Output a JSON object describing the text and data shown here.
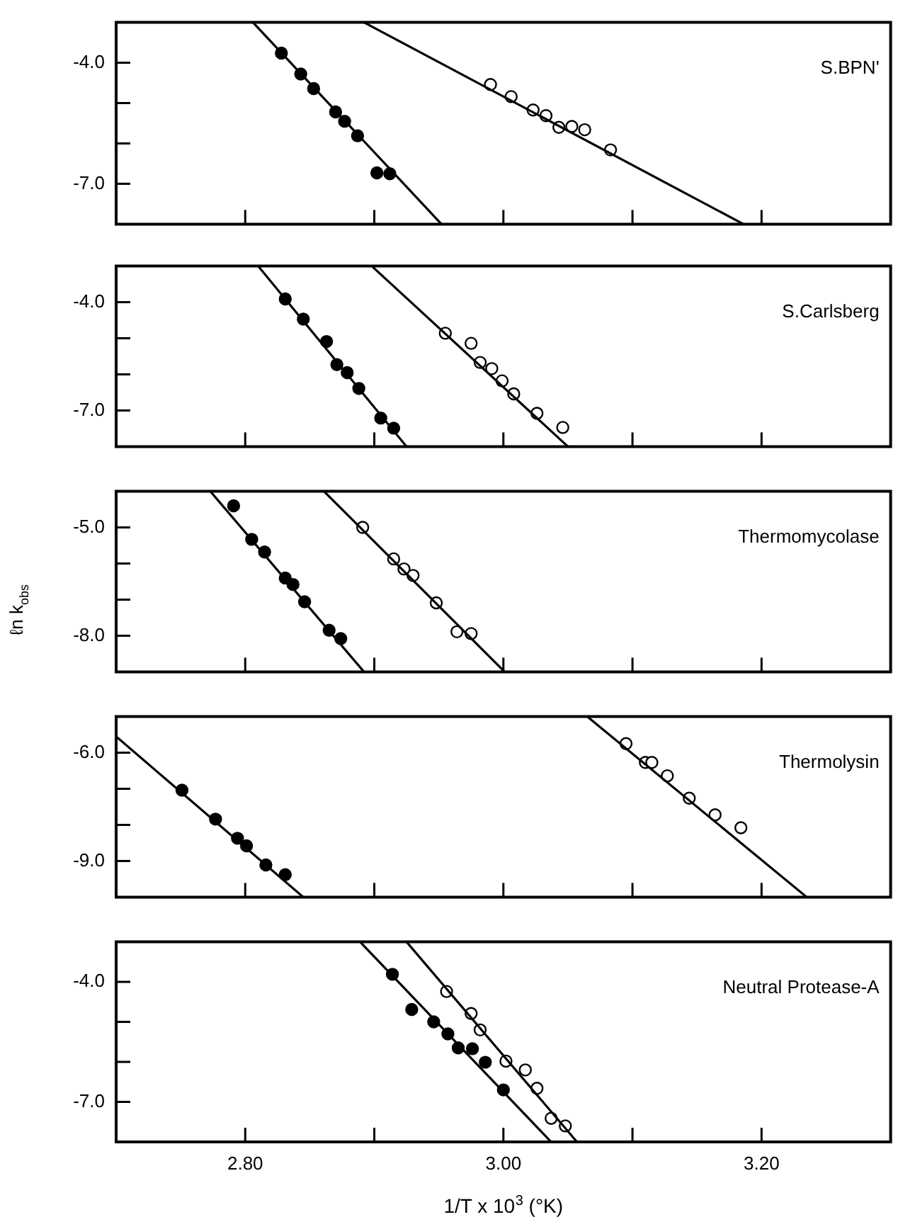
{
  "chart_data": [
    {
      "type": "scatter",
      "marker": "circle",
      "grid": false,
      "tick_labels": "y",
      "annotations": [
        "S.BPN'"
      ],
      "xlim": [
        2.7,
        3.3
      ],
      "xticks": [
        {
          "value": 2.8,
          "label": null
        },
        {
          "value": 2.9,
          "label": null
        },
        {
          "value": 3.0,
          "label": null
        },
        {
          "value": 3.1,
          "label": null
        },
        {
          "value": 3.2,
          "label": null
        }
      ],
      "ylim": [
        -8.0,
        -3.0
      ],
      "yticks": [
        {
          "value": -7,
          "label": "-7.0"
        },
        {
          "value": -6,
          "label": null
        },
        {
          "value": -5,
          "label": null
        },
        {
          "value": -4,
          "label": "-4.0"
        }
      ],
      "series": [
        {
          "type": "scatter",
          "color": "#000000",
          "x": [
            2.828,
            2.843,
            2.853,
            2.87,
            2.877,
            2.887,
            2.902,
            2.912
          ],
          "values": [
            -3.76,
            -4.28,
            -4.64,
            -5.22,
            -5.45,
            -5.81,
            -6.73,
            -6.75
          ]
        },
        {
          "type": "scatter",
          "color": "#ffffff",
          "x": [
            2.99,
            3.006,
            3.023,
            3.033,
            3.043,
            3.053,
            3.063,
            3.083
          ],
          "values": [
            -4.54,
            -4.84,
            -5.17,
            -5.31,
            -5.6,
            -5.58,
            -5.66,
            -6.16
          ]
        },
        {
          "type": "line",
          "marker": "none",
          "color": "#000000",
          "x": [
            2.806,
            2.952
          ],
          "values": [
            -3.0,
            -8.0
          ]
        },
        {
          "type": "line",
          "marker": "none",
          "color": "#000000",
          "x": [
            2.892,
            3.186
          ],
          "values": [
            -3.0,
            -8.0
          ]
        }
      ]
    },
    {
      "type": "scatter",
      "marker": "circle",
      "grid": false,
      "tick_labels": "y",
      "annotations": [
        "S.Carlsberg"
      ],
      "xlim": [
        2.7,
        3.3
      ],
      "xticks": [
        {
          "value": 2.8,
          "label": null
        },
        {
          "value": 2.9,
          "label": null
        },
        {
          "value": 3.0,
          "label": null
        },
        {
          "value": 3.1,
          "label": null
        },
        {
          "value": 3.2,
          "label": null
        }
      ],
      "ylim": [
        -8.0,
        -3.0
      ],
      "yticks": [
        {
          "value": -7,
          "label": "-7.0"
        },
        {
          "value": -6,
          "label": null
        },
        {
          "value": -5,
          "label": null
        },
        {
          "value": -4,
          "label": "-4.0"
        }
      ],
      "series": [
        {
          "type": "scatter",
          "color": "#000000",
          "x": [
            2.831,
            2.845,
            2.863,
            2.871,
            2.879,
            2.888,
            2.905,
            2.915
          ],
          "values": [
            -3.91,
            -4.47,
            -5.09,
            -5.73,
            -5.95,
            -6.39,
            -7.21,
            -7.49
          ]
        },
        {
          "type": "scatter",
          "color": "#ffffff",
          "x": [
            2.955,
            2.975,
            2.982,
            2.991,
            2.999,
            3.008,
            3.026,
            3.046
          ],
          "values": [
            -4.86,
            -5.14,
            -5.67,
            -5.84,
            -6.18,
            -6.54,
            -7.08,
            -7.47
          ]
        },
        {
          "type": "line",
          "marker": "none",
          "color": "#000000",
          "x": [
            2.81,
            2.925
          ],
          "values": [
            -3.0,
            -8.0
          ]
        },
        {
          "type": "line",
          "marker": "none",
          "color": "#000000",
          "x": [
            2.898,
            3.05
          ],
          "values": [
            -3.0,
            -8.0
          ]
        }
      ]
    },
    {
      "type": "scatter",
      "marker": "circle",
      "grid": false,
      "tick_labels": "y",
      "annotations": [
        "Thermomycolase"
      ],
      "ylabel": "ℓn k$_{obs}$",
      "xlim": [
        2.7,
        3.3
      ],
      "xticks": [
        {
          "value": 2.8,
          "label": null
        },
        {
          "value": 2.9,
          "label": null
        },
        {
          "value": 3.0,
          "label": null
        },
        {
          "value": 3.1,
          "label": null
        },
        {
          "value": 3.2,
          "label": null
        }
      ],
      "ylim": [
        -9.0,
        -4.0
      ],
      "yticks": [
        {
          "value": -8,
          "label": "-8.0"
        },
        {
          "value": -7,
          "label": null
        },
        {
          "value": -6,
          "label": null
        },
        {
          "value": -5,
          "label": "-5.0"
        }
      ],
      "series": [
        {
          "type": "scatter",
          "color": "#000000",
          "x": [
            2.791,
            2.805,
            2.815,
            2.831,
            2.837,
            2.846,
            2.865,
            2.874
          ],
          "values": [
            -4.4,
            -5.33,
            -5.68,
            -6.4,
            -6.58,
            -7.06,
            -7.85,
            -8.08
          ]
        },
        {
          "type": "scatter",
          "color": "#ffffff",
          "x": [
            2.891,
            2.915,
            2.923,
            2.93,
            2.948,
            2.964,
            2.975
          ],
          "values": [
            -5.0,
            -5.87,
            -6.15,
            -6.33,
            -7.09,
            -7.89,
            -7.94
          ]
        },
        {
          "type": "line",
          "marker": "none",
          "color": "#000000",
          "x": [
            2.773,
            2.892
          ],
          "values": [
            -4.0,
            -9.0
          ]
        },
        {
          "type": "line",
          "marker": "none",
          "color": "#000000",
          "x": [
            2.861,
            3.001
          ],
          "values": [
            -4.0,
            -9.0
          ]
        }
      ]
    },
    {
      "type": "scatter",
      "marker": "circle",
      "grid": false,
      "tick_labels": "y",
      "annotations": [
        "Thermolysin"
      ],
      "xlim": [
        2.7,
        3.3
      ],
      "xticks": [
        {
          "value": 2.8,
          "label": null
        },
        {
          "value": 2.9,
          "label": null
        },
        {
          "value": 3.0,
          "label": null
        },
        {
          "value": 3.1,
          "label": null
        },
        {
          "value": 3.2,
          "label": null
        }
      ],
      "ylim": [
        -10.0,
        -5.0
      ],
      "yticks": [
        {
          "value": -9,
          "label": "-9.0"
        },
        {
          "value": -8,
          "label": null
        },
        {
          "value": -7,
          "label": null
        },
        {
          "value": -6,
          "label": "-6.0"
        }
      ],
      "series": [
        {
          "type": "scatter",
          "color": "#000000",
          "x": [
            2.751,
            2.777,
            2.794,
            2.801,
            2.816,
            2.831
          ],
          "values": [
            -7.04,
            -7.84,
            -8.37,
            -8.58,
            -9.11,
            -9.38
          ]
        },
        {
          "type": "scatter",
          "color": "#ffffff",
          "x": [
            3.095,
            3.11,
            3.115,
            3.127,
            3.144,
            3.164,
            3.184
          ],
          "values": [
            -5.75,
            -6.27,
            -6.27,
            -6.64,
            -7.26,
            -7.72,
            -8.08
          ]
        },
        {
          "type": "line",
          "marker": "none",
          "color": "#000000",
          "x": [
            2.7,
            2.845
          ],
          "values": [
            -5.55,
            -10.0
          ]
        },
        {
          "type": "line",
          "marker": "none",
          "color": "#000000",
          "x": [
            3.065,
            3.235
          ],
          "values": [
            -5.0,
            -10.0
          ]
        }
      ]
    },
    {
      "type": "scatter",
      "marker": "circle",
      "grid": false,
      "annotations": [
        "Neutral Protease-A"
      ],
      "xlabel": "1/T x 10$^{3}$ (°K)",
      "xlim": [
        2.7,
        3.3
      ],
      "xticks": [
        {
          "value": 2.8,
          "label": "2.80"
        },
        {
          "value": 2.9,
          "label": null
        },
        {
          "value": 3.0,
          "label": "3.00"
        },
        {
          "value": 3.1,
          "label": null
        },
        {
          "value": 3.2,
          "label": "3.20"
        }
      ],
      "ylim": [
        -8.0,
        -3.0
      ],
      "yticks": [
        {
          "value": -7,
          "label": "-7.0"
        },
        {
          "value": -6,
          "label": null
        },
        {
          "value": -5,
          "label": null
        },
        {
          "value": -4,
          "label": "-4.0"
        }
      ],
      "series": [
        {
          "type": "scatter",
          "color": "#000000",
          "x": [
            2.914,
            2.929,
            2.946,
            2.957,
            2.965,
            2.976,
            2.986,
            3.0
          ],
          "values": [
            -3.81,
            -4.69,
            -5.0,
            -5.3,
            -5.65,
            -5.67,
            -6.01,
            -6.7
          ]
        },
        {
          "type": "scatter",
          "color": "#ffffff",
          "x": [
            2.956,
            2.975,
            2.982,
            3.002,
            3.017,
            3.026,
            3.037,
            3.048
          ],
          "values": [
            -4.24,
            -4.79,
            -5.2,
            -5.98,
            -6.2,
            -6.66,
            -7.41,
            -7.6
          ]
        },
        {
          "type": "line",
          "marker": "none",
          "color": "#000000",
          "x": [
            2.889,
            3.037
          ],
          "values": [
            -3.0,
            -8.0
          ]
        },
        {
          "type": "line",
          "marker": "none",
          "color": "#000000",
          "x": [
            2.925,
            3.057
          ],
          "values": [
            -3.0,
            -8.0
          ]
        }
      ]
    }
  ]
}
